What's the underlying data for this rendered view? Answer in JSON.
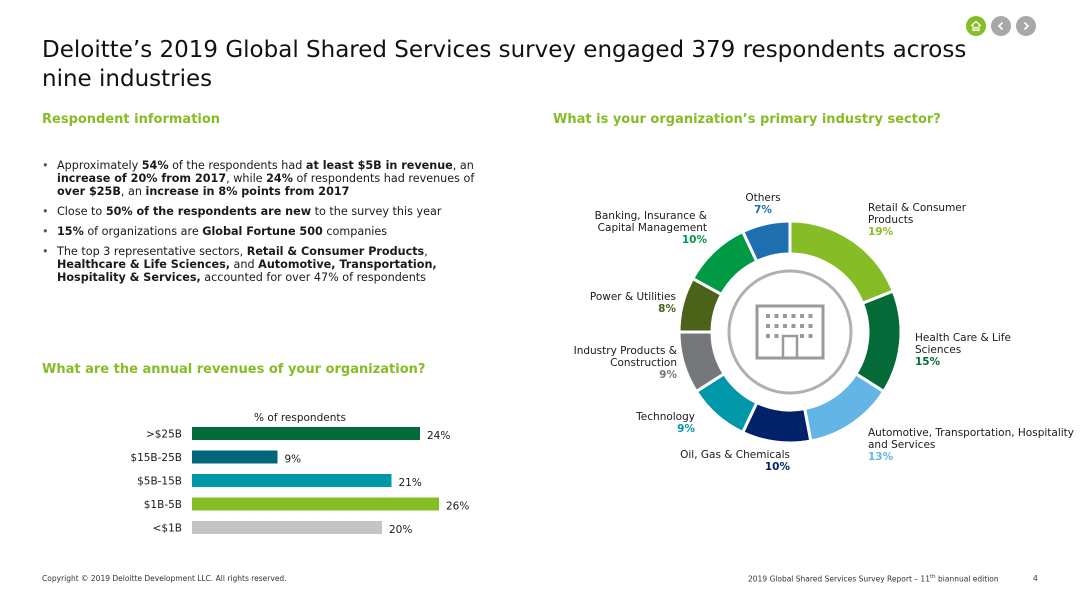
{
  "title": "Deloitte’s 2019 Global Shared Services survey engaged 379 respondents across nine industries",
  "nav": {
    "home_icon": "home-icon",
    "prev_icon": "chevron-left-icon",
    "next_icon": "chevron-right-icon",
    "accent": "#86bc25"
  },
  "respondent": {
    "heading": "Respondent information",
    "bullets": [
      [
        {
          "t": "Approximately ",
          "b": false
        },
        {
          "t": "54%",
          "b": true
        },
        {
          "t": " of the respondents had ",
          "b": false
        },
        {
          "t": "at least $5B in revenue",
          "b": true
        },
        {
          "t": ", an ",
          "b": false
        },
        {
          "t": "increase of 20% from 2017",
          "b": true
        },
        {
          "t": ", while ",
          "b": false
        },
        {
          "t": "24%",
          "b": true
        },
        {
          "t": " of respondents had revenues of ",
          "b": false
        },
        {
          "t": "over $25B",
          "b": true
        },
        {
          "t": ", an ",
          "b": false
        },
        {
          "t": "increase in 8% points from 2017",
          "b": true
        }
      ],
      [
        {
          "t": "Close to ",
          "b": false
        },
        {
          "t": "50% of the respondents are new",
          "b": true
        },
        {
          "t": " to the survey this year",
          "b": false
        }
      ],
      [
        {
          "t": "15%",
          "b": true
        },
        {
          "t": " of organizations are ",
          "b": false
        },
        {
          "t": "Global Fortune 500",
          "b": true
        },
        {
          "t": " companies",
          "b": false
        }
      ],
      [
        {
          "t": "The top 3 representative sectors, ",
          "b": false
        },
        {
          "t": "Retail & Consumer Products",
          "b": true
        },
        {
          "t": ", ",
          "b": false
        },
        {
          "t": "Healthcare & Life Sciences,",
          "b": true
        },
        {
          "t": " and ",
          "b": false
        },
        {
          "t": "Automotive, Transportation, Hospitality & Services,",
          "b": true
        },
        {
          "t": " accounted for over 47% of respondents",
          "b": false
        }
      ]
    ]
  },
  "revenue_heading": "What are the annual revenues of your organization?",
  "industry_heading": "What is your organization’s primary industry sector?",
  "chart_data": [
    {
      "type": "bar",
      "orientation": "horizontal",
      "xlabel": "% of respondents",
      "categories": [
        ">$25B",
        "$15B-25B",
        "$5B-15B",
        "$1B-5B",
        "<$1B"
      ],
      "values": [
        24,
        9,
        21,
        26,
        20
      ],
      "value_labels": [
        "24%",
        "9%",
        "21%",
        "26%",
        "20%"
      ],
      "colors": [
        "#046a38",
        "#00667a",
        "#0097a9",
        "#86bc25",
        "#c4c4c4"
      ]
    },
    {
      "type": "pie",
      "style": "donut",
      "center_icon": "building-icon",
      "categories": [
        "Retail & Consumer Products",
        "Health Care & Life Sciences",
        "Automotive, Transportation, Hospitality and Services",
        "Oil, Gas & Chemicals",
        "Technology",
        "Industry Products & Construction",
        "Power & Utilities",
        "Banking, Insurance & Capital Management",
        "Others"
      ],
      "values": [
        19,
        15,
        13,
        10,
        9,
        9,
        8,
        10,
        7
      ],
      "value_labels": [
        "19%",
        "15%",
        "13%",
        "10%",
        "9%",
        "9%",
        "8%",
        "10%",
        "7%"
      ],
      "colors": [
        "#86bc25",
        "#046a38",
        "#62b5e5",
        "#012169",
        "#0097a9",
        "#75787b",
        "#4a6319",
        "#009a44",
        "#1e6fb0"
      ],
      "label_colors": [
        "#86bc25",
        "#046a38",
        "#62b5e5",
        "#012169",
        "#0097a9",
        "#75787b",
        "#4a6319",
        "#009a44",
        "#1e6fb0"
      ]
    }
  ],
  "footer": {
    "left": "Copyright © 2019 Deloitte Development LLC. All rights reserved.",
    "right_pre": "2019 Global Shared Services Survey Report – 11",
    "right_sup": "th",
    "right_post": " biannual edition",
    "page": "4"
  }
}
